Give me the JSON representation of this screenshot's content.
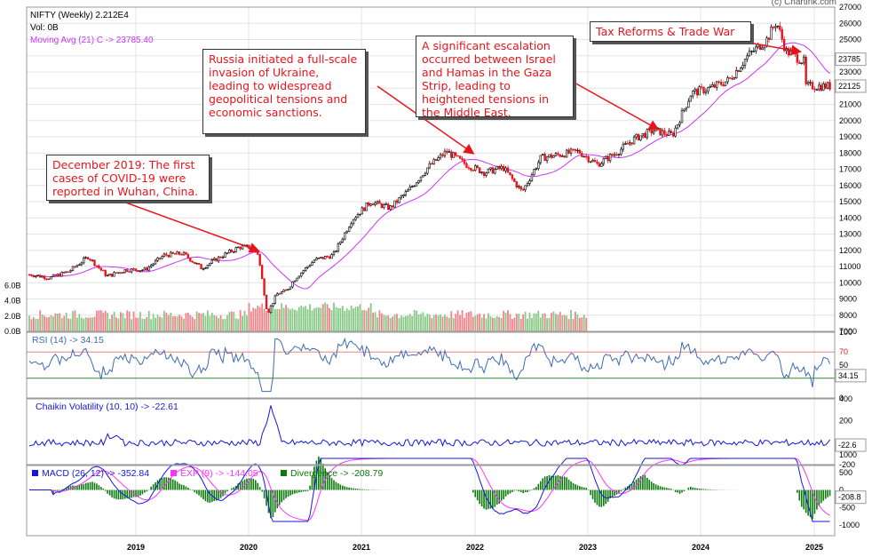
{
  "copyright": "(c) Chartink.com",
  "header": {
    "title": "NIFTY (Weekly) 2.212E4",
    "vol": "Vol: 0B",
    "ma": "Moving Avg (21) C -> 23785.40"
  },
  "annotations": [
    {
      "id": "covid",
      "text": "December 2019: The first cases of COVID-19 were reported in Wuhan, China."
    },
    {
      "id": "russia",
      "text": " Russia initiated a full-scale invasion of Ukraine, leading to widespread geopolitical tensions and economic sanctions."
    },
    {
      "id": "israel",
      "text": "A significant escalation occurred between Israel and Hamas in the Gaza Strip, leading to heightened tensions in the Middle East."
    },
    {
      "id": "tax",
      "text": "Tax Reforms & Trade War"
    }
  ],
  "panels": {
    "rsi": {
      "label": "RSI (14) -> 34.15",
      "badge": "34.15",
      "upper_line": "70"
    },
    "chaikin": {
      "label": "Chaikin Volatility (10, 10) -> -22.61",
      "badge": "-22.6"
    },
    "macd": {
      "label_macd": "MACD (26, 12) -> -352.84",
      "label_exp": "EXP (9) -> -144.05",
      "label_div": "Divergence -> -208.79",
      "badge": "-208.8"
    }
  },
  "colors": {
    "up": "#000000",
    "down": "#e8141b",
    "ma": "#cc33ff",
    "vol_up": "#88c987",
    "vol_down": "#f0848a",
    "rsi": "#3f6ab5",
    "chaikin": "#1616e0",
    "macd": "#1616e0",
    "exp": "#ff33ff",
    "div": "#0a7a0a",
    "text_red": "#e8141b",
    "grid": "#e3e3e3"
  },
  "chart_data": [
    {
      "type": "candlestick",
      "title": "NIFTY (Weekly) 2.212E4",
      "x_ticks": [
        "2019",
        "2020",
        "2021",
        "2022",
        "2023",
        "2024",
        "2025"
      ],
      "ylim": [
        7000,
        27000
      ],
      "y_ticks": [
        "27000",
        "26000",
        "25000",
        "24000",
        "23000",
        "22000",
        "21000",
        "20000",
        "19000",
        "18000",
        "17000",
        "16000",
        "15000",
        "14000",
        "13000",
        "12000",
        "11000",
        "10000",
        "9000",
        "8000",
        "7000"
      ],
      "price_badges": [
        "23785",
        "22125"
      ],
      "points": [
        {
          "date": "2018-02",
          "close": 10500
        },
        {
          "date": "2018-04",
          "close": 10300
        },
        {
          "date": "2018-06",
          "close": 10700
        },
        {
          "date": "2018-08",
          "close": 11600
        },
        {
          "date": "2018-10",
          "close": 10400
        },
        {
          "date": "2018-12",
          "close": 10800
        },
        {
          "date": "2019-02",
          "close": 10800
        },
        {
          "date": "2019-04",
          "close": 11700
        },
        {
          "date": "2019-06",
          "close": 11800
        },
        {
          "date": "2019-08",
          "close": 10900
        },
        {
          "date": "2019-10",
          "close": 11600
        },
        {
          "date": "2019-12",
          "close": 12200
        },
        {
          "date": "2020-01",
          "close": 12200
        },
        {
          "date": "2020-02",
          "close": 11800
        },
        {
          "date": "2020-03",
          "close": 8100
        },
        {
          "date": "2020-04",
          "close": 9300
        },
        {
          "date": "2020-05",
          "close": 9500
        },
        {
          "date": "2020-06",
          "close": 10300
        },
        {
          "date": "2020-08",
          "close": 11400
        },
        {
          "date": "2020-10",
          "close": 11700
        },
        {
          "date": "2020-12",
          "close": 13900
        },
        {
          "date": "2021-02",
          "close": 15000
        },
        {
          "date": "2021-04",
          "close": 14600
        },
        {
          "date": "2021-06",
          "close": 15700
        },
        {
          "date": "2021-08",
          "close": 17100
        },
        {
          "date": "2021-10",
          "close": 18100
        },
        {
          "date": "2021-12",
          "close": 17300
        },
        {
          "date": "2022-02",
          "close": 16800
        },
        {
          "date": "2022-04",
          "close": 17100
        },
        {
          "date": "2022-06",
          "close": 15600
        },
        {
          "date": "2022-08",
          "close": 17700
        },
        {
          "date": "2022-10",
          "close": 17900
        },
        {
          "date": "2022-12",
          "close": 18100
        },
        {
          "date": "2023-02",
          "close": 17300
        },
        {
          "date": "2023-04",
          "close": 18000
        },
        {
          "date": "2023-06",
          "close": 18900
        },
        {
          "date": "2023-08",
          "close": 19400
        },
        {
          "date": "2023-10",
          "close": 19100
        },
        {
          "date": "2023-12",
          "close": 21700
        },
        {
          "date": "2024-02",
          "close": 22000
        },
        {
          "date": "2024-04",
          "close": 22500
        },
        {
          "date": "2024-06",
          "close": 24000
        },
        {
          "date": "2024-08",
          "close": 25000
        },
        {
          "date": "2024-09",
          "close": 26100
        },
        {
          "date": "2024-10",
          "close": 24300
        },
        {
          "date": "2024-12",
          "close": 23600
        },
        {
          "date": "2025-02",
          "close": 22125
        }
      ]
    },
    {
      "type": "bar",
      "name": "Volume",
      "y_ticks": [
        "6.0B",
        "4.0B",
        "2.0B",
        "0.0B"
      ],
      "ylim": [
        0,
        7
      ],
      "ends": "2023-01"
    },
    {
      "type": "line",
      "name": "RSI (14)",
      "ylim": [
        0,
        100
      ],
      "y_ticks": [
        "100",
        "70",
        "50",
        "0"
      ],
      "last": 34.15
    },
    {
      "type": "line",
      "name": "Chaikin Volatility (10, 10)",
      "ylim": [
        -200,
        400
      ],
      "y_ticks": [
        "400",
        "200",
        "0",
        "-200"
      ],
      "last": -22.61
    },
    {
      "type": "line",
      "name": "MACD (26, 12)",
      "ylim": [
        -1000,
        1000
      ],
      "y_ticks": [
        "1000",
        "500",
        "0",
        "-500",
        "-1000"
      ],
      "last_macd": -352.84,
      "last_exp": -144.05,
      "last_div": -208.79
    }
  ]
}
